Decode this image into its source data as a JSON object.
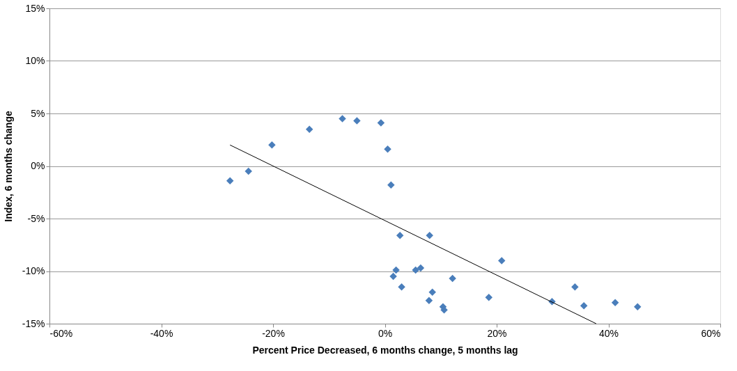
{
  "chart_data": {
    "type": "scatter",
    "xlabel": "Percent Price Decreased, 6 months change, 5 months lag",
    "ylabel": "Index, 6 months change",
    "grid": "y",
    "xlim": [
      -60,
      60
    ],
    "ylim": [
      -15,
      15
    ],
    "xticks": [
      {
        "value": -60,
        "label": "-60%"
      },
      {
        "value": -40,
        "label": "-40%"
      },
      {
        "value": -20,
        "label": "-20%"
      },
      {
        "value": 0,
        "label": "0%"
      },
      {
        "value": 20,
        "label": "20%"
      },
      {
        "value": 40,
        "label": "40%"
      },
      {
        "value": 60,
        "label": "60%"
      }
    ],
    "yticks": [
      {
        "value": -15,
        "label": "-15%"
      },
      {
        "value": -10,
        "label": "-10%"
      },
      {
        "value": -5,
        "label": "-5%"
      },
      {
        "value": 0,
        "label": "0%"
      },
      {
        "value": 5,
        "label": "5%"
      },
      {
        "value": 10,
        "label": "10%"
      },
      {
        "value": 15,
        "label": "15%"
      }
    ],
    "series": [
      {
        "marker": "diamond",
        "color": "#4a7ebb",
        "x": [
          -27.7,
          -24.4,
          -20.2,
          -13.5,
          -7.6,
          -5.0,
          -0.7,
          0.5,
          1.1,
          2.7,
          8.0,
          1.5,
          2.0,
          3.0,
          5.5,
          6.4,
          7.9,
          8.5,
          10.4,
          10.6,
          12.1,
          18.6,
          20.9,
          29.9,
          34.0,
          35.6,
          41.2,
          45.2
        ],
        "values": [
          -1.4,
          -0.5,
          2.0,
          3.5,
          4.5,
          4.3,
          4.1,
          1.6,
          -1.8,
          -6.6,
          -6.6,
          -10.5,
          -9.9,
          -11.5,
          -9.9,
          -9.7,
          -12.8,
          -12.0,
          -13.4,
          -13.7,
          -10.7,
          -12.5,
          -9.0,
          -12.9,
          -11.5,
          -13.3,
          -13.0,
          -13.4
        ]
      },
      {
        "type": "line",
        "color": "#000000",
        "x": [
          -27.7,
          37.8
        ],
        "values": [
          2.0,
          -15.0
        ]
      }
    ]
  }
}
